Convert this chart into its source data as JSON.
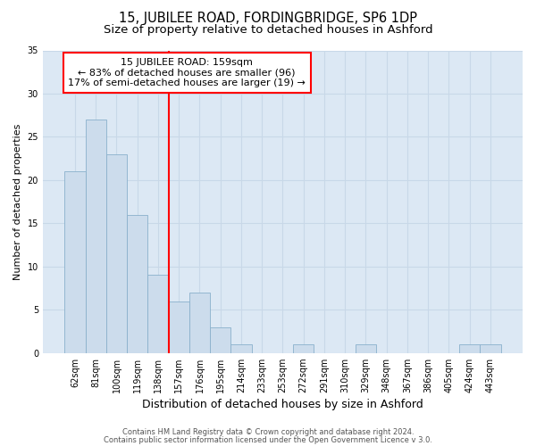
{
  "title1": "15, JUBILEE ROAD, FORDINGBRIDGE, SP6 1DP",
  "title2": "Size of property relative to detached houses in Ashford",
  "xlabel": "Distribution of detached houses by size in Ashford",
  "ylabel": "Number of detached properties",
  "categories": [
    "62sqm",
    "81sqm",
    "100sqm",
    "119sqm",
    "138sqm",
    "157sqm",
    "176sqm",
    "195sqm",
    "214sqm",
    "233sqm",
    "253sqm",
    "272sqm",
    "291sqm",
    "310sqm",
    "329sqm",
    "348sqm",
    "367sqm",
    "386sqm",
    "405sqm",
    "424sqm",
    "443sqm"
  ],
  "values": [
    21,
    27,
    23,
    16,
    9,
    6,
    7,
    3,
    1,
    0,
    0,
    1,
    0,
    0,
    1,
    0,
    0,
    0,
    0,
    1,
    1
  ],
  "bar_color": "#ccdcec",
  "bar_edge_color": "#8ab0cc",
  "red_line_index": 5,
  "annotation_line1": "15 JUBILEE ROAD: 159sqm",
  "annotation_line2": "← 83% of detached houses are smaller (96)",
  "annotation_line3": "17% of semi-detached houses are larger (19) →",
  "annotation_box_color": "white",
  "annotation_box_edge": "red",
  "vline_color": "red",
  "ylim": [
    0,
    35
  ],
  "yticks": [
    0,
    5,
    10,
    15,
    20,
    25,
    30,
    35
  ],
  "grid_color": "#c8d8e8",
  "bg_color": "#dce8f4",
  "footer1": "Contains HM Land Registry data © Crown copyright and database right 2024.",
  "footer2": "Contains public sector information licensed under the Open Government Licence v 3.0.",
  "title1_fontsize": 10.5,
  "title2_fontsize": 9.5,
  "xlabel_fontsize": 9,
  "ylabel_fontsize": 8,
  "tick_fontsize": 7,
  "annot_fontsize": 8,
  "footer_fontsize": 6
}
